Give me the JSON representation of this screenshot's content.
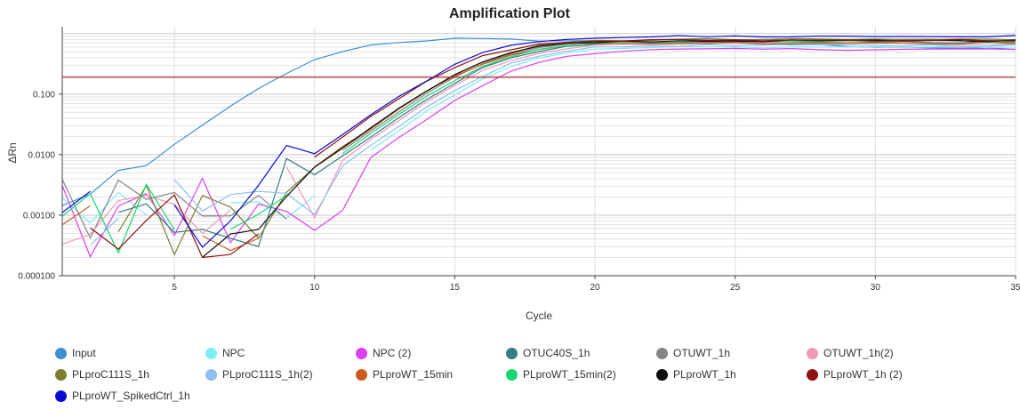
{
  "chart_data": {
    "type": "line",
    "title": "Amplification Plot",
    "xlabel": "Cycle",
    "ylabel": "ΔRn",
    "xlim": [
      1,
      35
    ],
    "ylim": [
      0.0001,
      1.3
    ],
    "yscale": "log",
    "x_ticks": [
      5,
      10,
      15,
      20,
      25,
      30,
      35
    ],
    "y_ticks": [
      {
        "value": 0.1,
        "label": "0.100"
      },
      {
        "value": 0.01,
        "label": "0.0100"
      },
      {
        "value": 0.001,
        "label": "0.00100"
      },
      {
        "value": 0.0001,
        "label": "0.000100"
      }
    ],
    "threshold": 0.19,
    "threshold_color": "#b03030",
    "grid": true,
    "legend_position": "bottom",
    "series": [
      {
        "name": "Input",
        "color": "#3d8fd0",
        "ct": 8.1,
        "plateau": 0.82,
        "peak": 14.8,
        "decay": 0.55
      },
      {
        "name": "NPC",
        "color": "#7eecf6",
        "ct": 14.9,
        "plateau": 0.6
      },
      {
        "name": "NPC (2)",
        "color": "#dd3ff0",
        "ct": 15.2,
        "plateau": 0.55
      },
      {
        "name": "OTUC40S_1h",
        "color": "#327f85",
        "ct": 14.5,
        "plateau": 0.72
      },
      {
        "name": "OTUWT_1h",
        "color": "#858585",
        "ct": 14.3,
        "plateau": 0.78
      },
      {
        "name": "OTUWT_1h(2)",
        "color": "#f09ab8",
        "ct": 14.6,
        "plateau": 0.68
      },
      {
        "name": "PLproC111S_1h",
        "color": "#7e7e30",
        "ct": 14.2,
        "plateau": 0.8
      },
      {
        "name": "PLproC111S_1h(2)",
        "color": "#8ebef2",
        "ct": 14.8,
        "plateau": 0.64
      },
      {
        "name": "PLproWT_15min",
        "color": "#cf5b1d",
        "ct": 14.0,
        "plateau": 0.7
      },
      {
        "name": "PLproWT_15min(2)",
        "color": "#17d66e",
        "ct": 14.4,
        "plateau": 0.74
      },
      {
        "name": "PLproWT_1h",
        "color": "#0d0d0d",
        "ct": 14.1,
        "plateau": 0.76
      },
      {
        "name": "PLproWT_1h (2)",
        "color": "#8e1212",
        "ct": 13.6,
        "plateau": 0.78
      },
      {
        "name": "PLproWT_SpikedCtrl_1h",
        "color": "#0b0bd4",
        "ct": 13.7,
        "plateau": 0.9
      }
    ]
  }
}
